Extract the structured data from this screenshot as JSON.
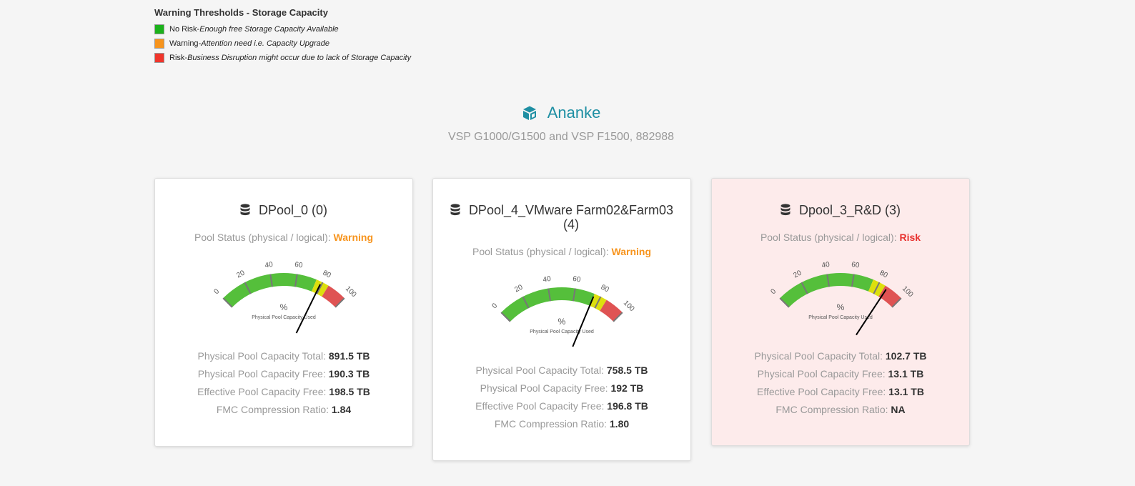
{
  "legend": {
    "title": "Warning Thresholds - Storage Capacity",
    "items": [
      {
        "name": "No Risk",
        "sep": " - ",
        "desc": "Enough free Storage Capacity Available",
        "color": "#1bb21b"
      },
      {
        "name": "Warning",
        "sep": " - ",
        "desc": "Attention need i.e. Capacity Upgrade",
        "color": "#f7941d"
      },
      {
        "name": "Risk",
        "sep": " - ",
        "desc": "Business Disruption might occur due to lack of Storage Capacity",
        "color": "#f0352b"
      }
    ]
  },
  "system": {
    "name": "Ananke",
    "subtitle": "VSP G1000/G1500 and VSP F1500, 882988",
    "icon": "cube-icon",
    "color": "#1e8fa3"
  },
  "labels": {
    "status_prefix": "Pool Status (physical / logical): ",
    "total": "Physical Pool Capacity Total: ",
    "free": "Physical Pool Capacity Free: ",
    "effective": "Effective Pool Capacity Free: ",
    "fmc": "FMC Compression Ratio: "
  },
  "gauge": {
    "unit": "%",
    "caption": "Physical Pool Capacity Used",
    "ticks": [
      "0",
      "20",
      "40",
      "60",
      "80",
      "100"
    ],
    "bands": [
      {
        "from": 0,
        "to": 75,
        "color": "#55bf3b"
      },
      {
        "from": 75,
        "to": 85,
        "color": "#dddf0d"
      },
      {
        "from": 85,
        "to": 100,
        "color": "#df5353"
      }
    ]
  },
  "pools": [
    {
      "title_line1": "DPool_0 (0)",
      "title_line2": "",
      "status": "Warning",
      "status_level": "warning",
      "used_percent": 79,
      "total": "891.5 TB",
      "free": "190.3 TB",
      "effective": "198.5 TB",
      "fmc": "1.84"
    },
    {
      "title_line1": "DPool_4_VMware Farm02&Farm03",
      "title_line2": "(4)",
      "status": "Warning",
      "status_level": "warning",
      "used_percent": 75,
      "total": "758.5 TB",
      "free": "192 TB",
      "effective": "196.8 TB",
      "fmc": "1.80"
    },
    {
      "title_line1": "Dpool_3_R&D (3)",
      "title_line2": "",
      "status": "Risk",
      "status_level": "risk",
      "used_percent": 87,
      "total": "102.7 TB",
      "free": "13.1 TB",
      "effective": "13.1 TB",
      "fmc": "NA"
    }
  ]
}
